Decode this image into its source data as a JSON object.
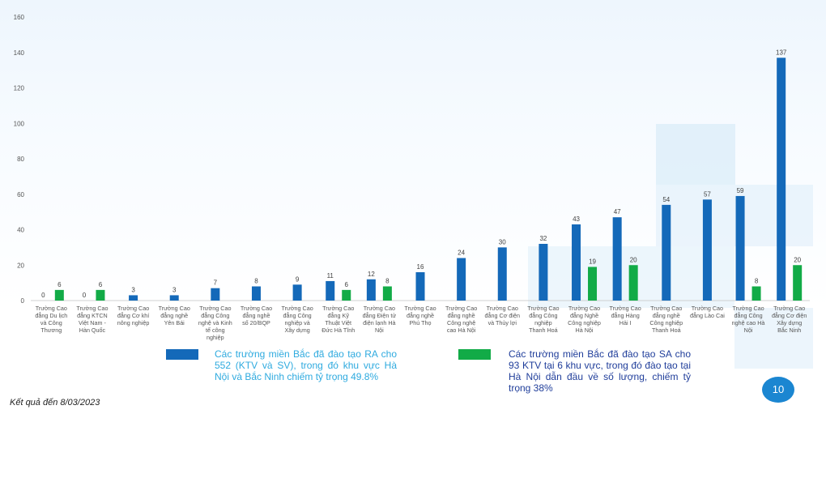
{
  "chart_data": {
    "type": "bar",
    "title": "",
    "xlabel": "",
    "ylabel": "",
    "ylim": [
      0,
      160
    ],
    "yticks": [
      0,
      20,
      40,
      60,
      80,
      100,
      120,
      140,
      160
    ],
    "grid": false,
    "categories": [
      [
        "Trường Cao",
        "đẳng Du lịch",
        "và Công",
        "Thương"
      ],
      [
        "Trường Cao",
        "đẳng KTCN",
        "Việt Nam -",
        "Hàn Quốc"
      ],
      [
        "Trường Cao",
        "đẳng Cơ khí",
        "nông nghiệp"
      ],
      [
        "Trường Cao",
        "đẳng nghề",
        "Yên Bái"
      ],
      [
        "Trường Cao",
        "đẳng Công",
        "nghệ và Kinh",
        "tế công",
        "nghiệp"
      ],
      [
        "Trường Cao",
        "đẳng nghề",
        "số 20/BQP"
      ],
      [
        "Trường Cao",
        "đẳng Công",
        "nghiệp và",
        "Xây dựng"
      ],
      [
        "Trường Cao",
        "đẳng Kỹ",
        "Thuật Việt",
        "Đức Hà Tĩnh"
      ],
      [
        "Trường Cao",
        "đẳng Điện tử",
        "điện lạnh Hà",
        "Nội"
      ],
      [
        "Trường Cao",
        "đẳng nghề",
        "Phú Thọ"
      ],
      [
        "Trường Cao",
        "đẳng nghề",
        "Công nghệ",
        "cao Hà Nội"
      ],
      [
        "Trường Cao",
        "đẳng Cơ điện",
        "và Thủy lợi"
      ],
      [
        "Trường Cao",
        "đẳng Công",
        "nghiệp",
        "Thanh Hoá"
      ],
      [
        "Trường Cao",
        "đẳng Nghề",
        "Công nghiệp",
        "Hà Nội"
      ],
      [
        "Trường Cao",
        "đẳng Hàng",
        "Hải I"
      ],
      [
        "Trường Cao",
        "đẳng nghề",
        "Công nghiệp",
        "Thanh Hoá"
      ],
      [
        "Trường Cao",
        "đẳng Lào Cai"
      ],
      [
        "Trường Cao",
        "đẳng Công",
        "nghệ cao Hà",
        "Nội"
      ],
      [
        "Trường Cao",
        "đẳng Cơ điện",
        "Xây dựng",
        "Bắc Ninh"
      ]
    ],
    "series": [
      {
        "color": "#1469b9",
        "values": [
          0,
          0,
          3,
          3,
          7,
          8,
          9,
          11,
          12,
          16,
          24,
          30,
          32,
          43,
          47,
          54,
          57,
          59,
          137
        ]
      },
      {
        "color": "#12ab47",
        "values": [
          6,
          6,
          null,
          null,
          null,
          null,
          null,
          6,
          8,
          null,
          null,
          null,
          null,
          19,
          20,
          null,
          null,
          8,
          20
        ]
      }
    ],
    "legend": [
      {
        "color": "#1469b9",
        "text": "Các trường miền Bắc đã đào tạo RA cho 552 (KTV và SV), trong đó khu vực Hà Nội và Bắc Ninh chiếm tỷ trọng 49.8%"
      },
      {
        "color": "#12ab47",
        "text": "Các trường miền Bắc đã đào tạo SA cho 93 KTV tại 6 khu vực, trong đó đào tạo tại Hà Nội dẫn đầu về số lượng, chiếm tỷ trọng 38%"
      }
    ]
  },
  "footnote": "Kết quả đến 8/03/2023",
  "page_number": "10"
}
